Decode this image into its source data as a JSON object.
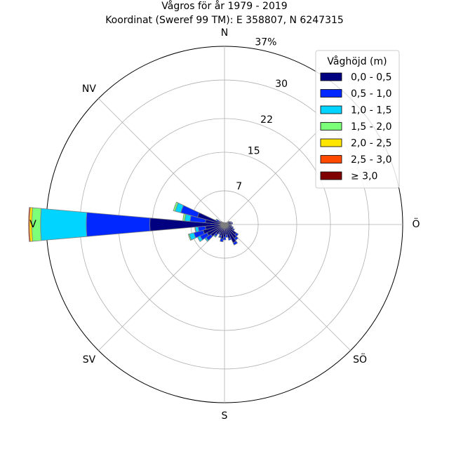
{
  "chart_data": {
    "type": "wind_rose",
    "title": "Vågros för år 1979 - 2019",
    "subtitle": "Koordinat (Sweref 99 TM): E 358807, N 6247315",
    "direction_labels": [
      "N",
      "NV",
      "V",
      "SV",
      "S",
      "SÖ",
      "Ö"
    ],
    "radial_ticks": [
      "7",
      "15",
      "22",
      "30",
      "37%"
    ],
    "radial_tick_values": [
      7,
      15,
      22,
      30,
      37
    ],
    "rmax": 37,
    "legend_title": "Våghöjd (m)",
    "bins": [
      "0,0 - 0,5",
      "0,5 - 1,0",
      "1,0 - 1,5",
      "1,5 - 2,0",
      "2,0 - 2,5",
      "2,5 - 3,0",
      "≥ 3,0"
    ],
    "colors": [
      "#000080",
      "#0028ff",
      "#00d4ff",
      "#7cff79",
      "#ffe600",
      "#ff4a00",
      "#800000"
    ],
    "sector_width_deg": 10,
    "sectors": [
      {
        "direction_deg": 270,
        "values": [
          15.5,
          13.2,
          9.5,
          1.8,
          0.5,
          0.2,
          0.0
        ]
      },
      {
        "direction_deg": 280,
        "values": [
          4.0,
          3.2,
          1.1,
          0.4,
          0.0,
          0.0,
          0.0
        ]
      },
      {
        "direction_deg": 290,
        "values": [
          5.8,
          3.6,
          1.2,
          0.4,
          0.0,
          0.0,
          0.0
        ]
      },
      {
        "direction_deg": 300,
        "values": [
          1.2,
          0.6,
          0.2,
          0.0,
          0.0,
          0.0,
          0.0
        ]
      },
      {
        "direction_deg": 310,
        "values": [
          0.7,
          0.2,
          0.0,
          0.0,
          0.0,
          0.0,
          0.0
        ]
      },
      {
        "direction_deg": 320,
        "values": [
          0.5,
          0.1,
          0.0,
          0.0,
          0.0,
          0.0,
          0.0
        ]
      },
      {
        "direction_deg": 330,
        "values": [
          0.4,
          0.1,
          0.0,
          0.0,
          0.0,
          0.0,
          0.0
        ]
      },
      {
        "direction_deg": 340,
        "values": [
          0.4,
          0.0,
          0.0,
          0.0,
          0.0,
          0.0,
          0.0
        ]
      },
      {
        "direction_deg": 350,
        "values": [
          0.4,
          0.0,
          0.0,
          0.0,
          0.0,
          0.0,
          0.0
        ]
      },
      {
        "direction_deg": 0,
        "values": [
          0.4,
          0.0,
          0.0,
          0.0,
          0.0,
          0.0,
          0.0
        ]
      },
      {
        "direction_deg": 10,
        "values": [
          0.3,
          0.0,
          0.0,
          0.0,
          0.0,
          0.0,
          0.0
        ]
      },
      {
        "direction_deg": 20,
        "values": [
          0.3,
          0.0,
          0.0,
          0.0,
          0.0,
          0.0,
          0.0
        ]
      },
      {
        "direction_deg": 30,
        "values": [
          0.4,
          0.0,
          0.0,
          0.0,
          0.0,
          0.0,
          0.0
        ]
      },
      {
        "direction_deg": 40,
        "values": [
          0.5,
          0.0,
          0.0,
          0.0,
          0.0,
          0.0,
          0.0
        ]
      },
      {
        "direction_deg": 50,
        "values": [
          0.5,
          0.0,
          0.0,
          0.0,
          0.0,
          0.0,
          0.0
        ]
      },
      {
        "direction_deg": 60,
        "values": [
          1.0,
          0.2,
          0.0,
          0.0,
          0.0,
          0.0,
          0.0
        ]
      },
      {
        "direction_deg": 70,
        "values": [
          1.3,
          0.2,
          0.0,
          0.0,
          0.0,
          0.0,
          0.0
        ]
      },
      {
        "direction_deg": 80,
        "values": [
          1.4,
          0.3,
          0.0,
          0.0,
          0.0,
          0.0,
          0.0
        ]
      },
      {
        "direction_deg": 90,
        "values": [
          1.2,
          0.2,
          0.0,
          0.0,
          0.0,
          0.0,
          0.0
        ]
      },
      {
        "direction_deg": 100,
        "values": [
          1.3,
          0.2,
          0.0,
          0.0,
          0.0,
          0.0,
          0.0
        ]
      },
      {
        "direction_deg": 110,
        "values": [
          1.6,
          0.3,
          0.0,
          0.0,
          0.0,
          0.0,
          0.0
        ]
      },
      {
        "direction_deg": 120,
        "values": [
          2.0,
          0.3,
          0.0,
          0.0,
          0.0,
          0.0,
          0.0
        ]
      },
      {
        "direction_deg": 130,
        "values": [
          3.0,
          0.5,
          0.0,
          0.0,
          0.0,
          0.0,
          0.0
        ]
      },
      {
        "direction_deg": 140,
        "values": [
          3.5,
          0.5,
          0.0,
          0.0,
          0.0,
          0.0,
          0.0
        ]
      },
      {
        "direction_deg": 150,
        "values": [
          4.2,
          0.5,
          0.0,
          0.0,
          0.0,
          0.0,
          0.0
        ]
      },
      {
        "direction_deg": 160,
        "values": [
          3.0,
          0.4,
          0.0,
          0.0,
          0.0,
          0.0,
          0.0
        ]
      },
      {
        "direction_deg": 170,
        "values": [
          2.2,
          0.5,
          0.0,
          0.0,
          0.0,
          0.0,
          0.0
        ]
      },
      {
        "direction_deg": 180,
        "values": [
          2.6,
          0.6,
          0.0,
          0.0,
          0.0,
          0.0,
          0.0
        ]
      },
      {
        "direction_deg": 190,
        "values": [
          3.0,
          0.6,
          0.0,
          0.0,
          0.0,
          0.0,
          0.0
        ]
      },
      {
        "direction_deg": 200,
        "values": [
          2.4,
          0.4,
          0.1,
          0.0,
          0.0,
          0.0,
          0.0
        ]
      },
      {
        "direction_deg": 210,
        "values": [
          2.0,
          0.3,
          0.0,
          0.0,
          0.0,
          0.0,
          0.0
        ]
      },
      {
        "direction_deg": 220,
        "values": [
          2.5,
          0.5,
          0.2,
          0.0,
          0.0,
          0.0,
          0.0
        ]
      },
      {
        "direction_deg": 230,
        "values": [
          3.5,
          1.2,
          0.3,
          0.0,
          0.0,
          0.0,
          0.0
        ]
      },
      {
        "direction_deg": 240,
        "values": [
          4.0,
          1.6,
          0.6,
          0.0,
          0.0,
          0.0,
          0.0
        ]
      },
      {
        "direction_deg": 250,
        "values": [
          4.6,
          2.0,
          1.0,
          0.2,
          0.0,
          0.0,
          0.0
        ]
      },
      {
        "direction_deg": 260,
        "values": [
          4.0,
          1.5,
          0.6,
          0.1,
          0.0,
          0.0,
          0.0
        ]
      }
    ]
  }
}
